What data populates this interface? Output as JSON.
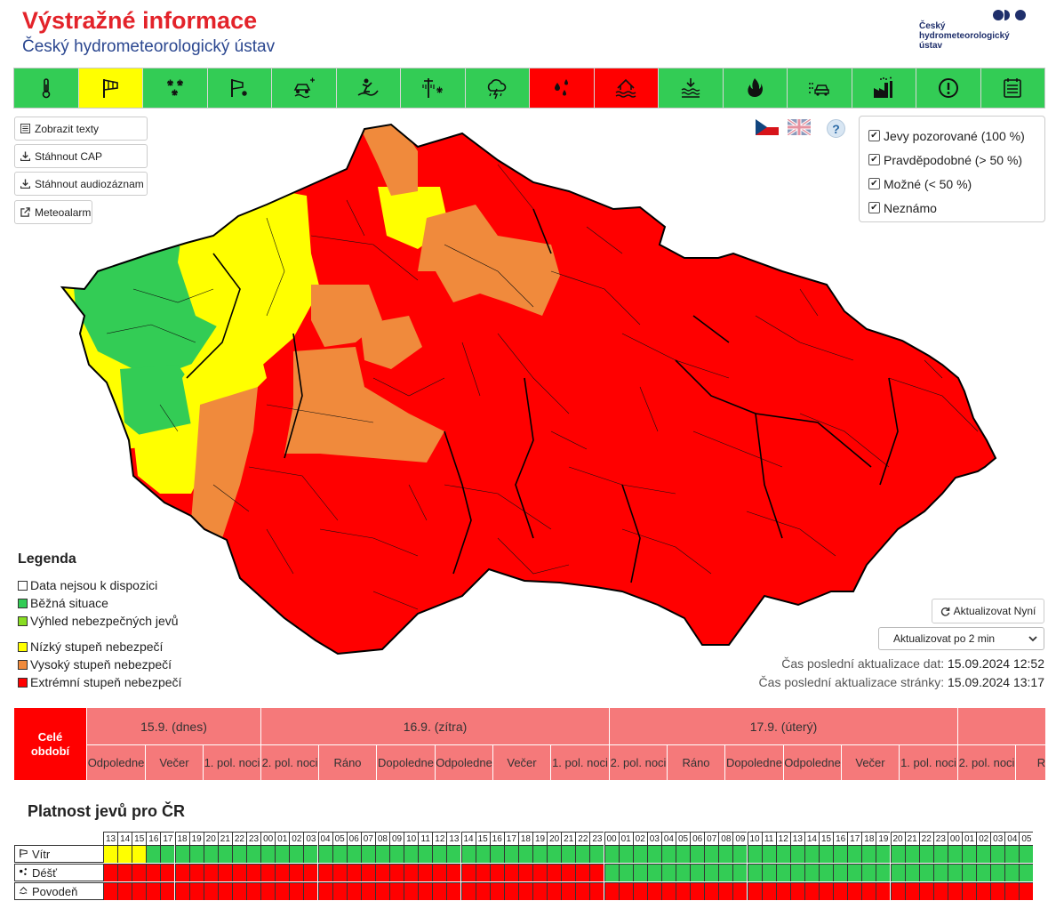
{
  "header": {
    "title": "Výstražné informace",
    "subtitle": "Český hydrometeorologický ústav",
    "logo_text": "Český\nhydrometeorologický\nústav"
  },
  "phenomena_bar": [
    {
      "name": "temperature-icon",
      "color": "#33cc55"
    },
    {
      "name": "wind-icon",
      "color": "#ffff00"
    },
    {
      "name": "snow-icon",
      "color": "#33cc55"
    },
    {
      "name": "snow-wind-icon",
      "color": "#33cc55"
    },
    {
      "name": "slippery-road-icon",
      "color": "#33cc55"
    },
    {
      "name": "avalanche-icon",
      "color": "#33cc55"
    },
    {
      "name": "icing-icon",
      "color": "#33cc55"
    },
    {
      "name": "thunderstorm-icon",
      "color": "#33cc55"
    },
    {
      "name": "rain-icon",
      "color": "#ff0000"
    },
    {
      "name": "flood-icon",
      "color": "#ff0000"
    },
    {
      "name": "low-water-icon",
      "color": "#33cc55"
    },
    {
      "name": "fire-icon",
      "color": "#33cc55"
    },
    {
      "name": "fog-icon",
      "color": "#33cc55"
    },
    {
      "name": "smog-icon",
      "color": "#33cc55"
    },
    {
      "name": "warning-icon",
      "color": "#33cc55"
    },
    {
      "name": "report-icon",
      "color": "#33cc55"
    }
  ],
  "side_buttons": {
    "texts": "Zobrazit texty",
    "cap": "Stáhnout CAP",
    "audio": "Stáhnout audiozáznam",
    "meteoalarm": "Meteoalarm"
  },
  "filters": {
    "observed": "Jevy pozorované (100 %)",
    "probable": "Pravděpodobné (> 50 %)",
    "possible": "Možné (< 50 %)",
    "unknown": "Neznámo"
  },
  "help_label": "?",
  "legend": {
    "title": "Legenda",
    "no_data": "Data nejsou k dispozici",
    "normal": "Běžná situace",
    "outlook": "Výhled nebezpečných jevů",
    "low": "Nízký stupeň nebezpečí",
    "high": "Vysoký stupeň nebezpečí",
    "extreme": "Extrémní stupeň nebezpečí"
  },
  "colors": {
    "no_data": "#ffffff",
    "normal": "#33cc55",
    "outlook": "#88dd22",
    "low": "#ffff00",
    "high": "#f08a3c",
    "extreme": "#ff0000"
  },
  "refresh": {
    "button": "Aktualizovat Nyní",
    "interval": "Aktualizovat po 2 min",
    "data_label": "Čas poslední aktualizace dat:",
    "data_time": "15.09.2024 12:52",
    "page_label": "Čas poslední aktualizace stránky:",
    "page_time": "15.09.2024 13:17"
  },
  "timeline": {
    "all_label": "Celé období",
    "days": [
      {
        "label": "15.9. (dnes)"
      },
      {
        "label": "16.9. (zítra)"
      },
      {
        "label": "17.9. (úterý)"
      },
      {
        "label": ""
      }
    ],
    "parts": [
      "Odpoledne",
      "Večer",
      "1. pol. noci",
      "2. pol. noci",
      "Ráno",
      "Dopoledne",
      "Odpoledne",
      "Večer",
      "1. pol. noci",
      "2. pol. noci",
      "Ráno",
      "Dopoledne",
      "Odpoledne",
      "Večer",
      "1. pol. noci",
      "2. pol. noci",
      "Rá"
    ]
  },
  "validity": {
    "title": "Platnost jevů pro ČR",
    "hours": [
      "13",
      "14",
      "15",
      "16",
      "17",
      "18",
      "19",
      "20",
      "21",
      "22",
      "23",
      "00",
      "01",
      "02",
      "03",
      "04",
      "05",
      "06",
      "07",
      "08",
      "09",
      "10",
      "11",
      "12",
      "13",
      "14",
      "15",
      "16",
      "17",
      "18",
      "19",
      "20",
      "21",
      "22",
      "23",
      "00",
      "01",
      "02",
      "03",
      "04",
      "05",
      "06",
      "07",
      "08",
      "09",
      "10",
      "11",
      "12",
      "13",
      "14",
      "15",
      "16",
      "17",
      "18",
      "19",
      "20",
      "21",
      "22",
      "23",
      "00",
      "01",
      "02",
      "03",
      "04",
      "05"
    ],
    "rows": [
      {
        "label": "Vítr",
        "icon": "wind-icon",
        "segments": [
          {
            "level": "low",
            "count": 3
          },
          {
            "level": "normal",
            "count": 62
          }
        ]
      },
      {
        "label": "Déšť",
        "icon": "rain-icon",
        "segments": [
          {
            "level": "extreme",
            "count": 35
          },
          {
            "level": "normal",
            "count": 30
          }
        ]
      },
      {
        "label": "Povodeň",
        "icon": "flood-icon",
        "segments": [
          {
            "level": "extreme",
            "count": 65
          }
        ]
      }
    ]
  }
}
